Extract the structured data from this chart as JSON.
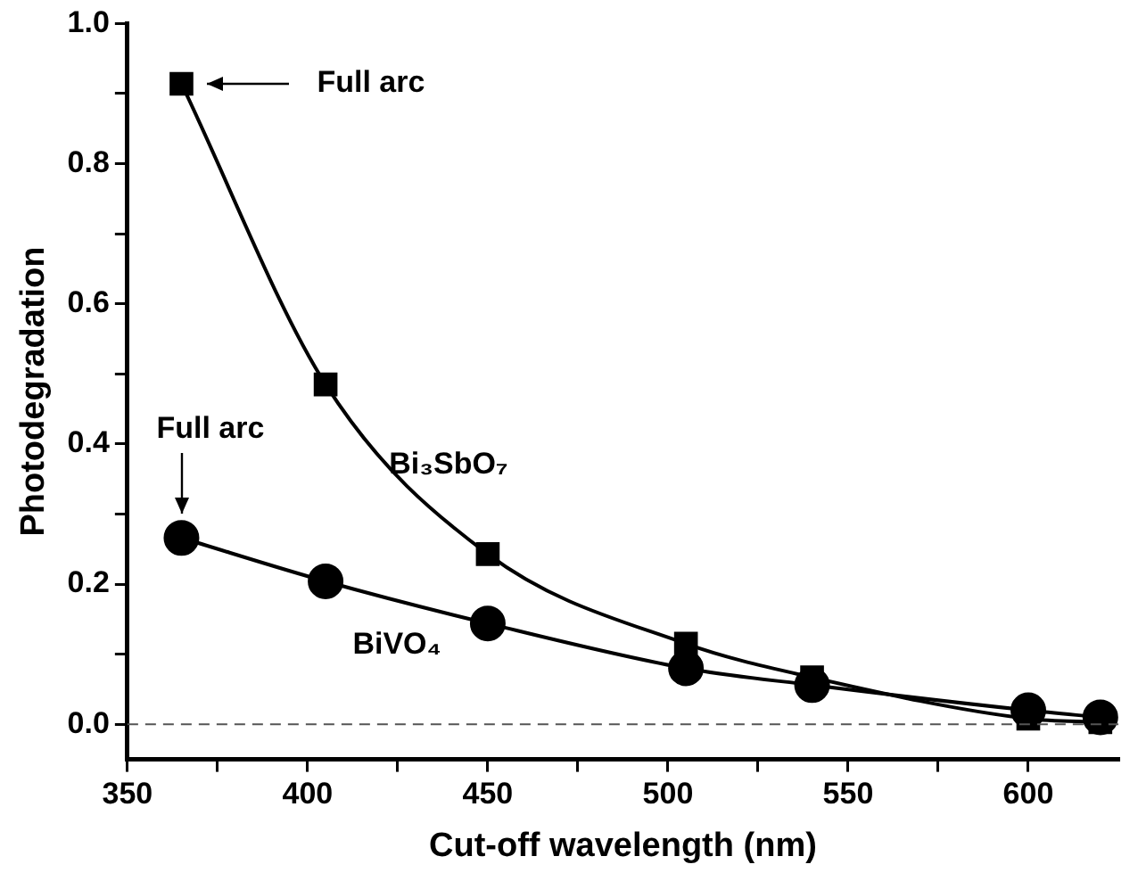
{
  "chart_data": {
    "type": "line",
    "xlabel": "Cut-off wavelength (nm)",
    "ylabel": "Photodegradation",
    "xlim": [
      350,
      625
    ],
    "ylim": [
      -0.05,
      1.0
    ],
    "xticks": [
      350,
      {
        "value": 375,
        "label": null
      },
      400,
      {
        "value": 425,
        "label": null
      },
      450,
      {
        "value": 475,
        "label": null
      },
      500,
      {
        "value": 525,
        "label": null
      },
      550,
      {
        "value": 575,
        "label": null
      },
      600
    ],
    "yticks": [
      {
        "value": 0,
        "label": "0.0"
      },
      {
        "value": 0.1,
        "label": null
      },
      0.2,
      {
        "value": 0.3,
        "label": null
      },
      0.4,
      {
        "value": 0.5,
        "label": null
      },
      0.6,
      {
        "value": 0.7,
        "label": null
      },
      0.8,
      {
        "value": 0.9,
        "label": null
      },
      {
        "value": 1,
        "label": "1.0"
      }
    ],
    "grid": false,
    "legend": false,
    "series": [
      {
        "name": "Bi₃SbO₇",
        "color": "#000000",
        "marker": "square",
        "x": [
          365,
          405,
          450,
          505,
          540,
          600,
          620
        ],
        "values": [
          0.914,
          0.485,
          0.243,
          0.115,
          0.067,
          0.008,
          0.003
        ]
      },
      {
        "name": "BiVO₄",
        "color": "#000000",
        "marker": "circle",
        "x": [
          365,
          405,
          450,
          505,
          540,
          600,
          620
        ],
        "values": [
          0.266,
          0.204,
          0.144,
          0.08,
          0.056,
          0.02,
          0.01
        ]
      }
    ],
    "ref_lines": [
      {
        "axis": "y",
        "value": 0,
        "color": "#555555",
        "line_style": "dashed"
      }
    ],
    "annotations": [
      "Full arc",
      "Full arc"
    ]
  }
}
